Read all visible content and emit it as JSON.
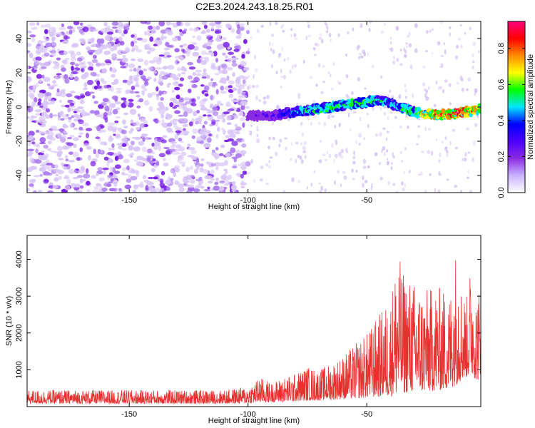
{
  "title": "C2E3.2024.243.18.25.R01",
  "chart_data": [
    {
      "type": "heatmap",
      "xlabel": "Height of straight line (km)",
      "ylabel": "Frequency (Hz)",
      "xlim": [
        -193,
        -2
      ],
      "ylim": [
        -50,
        50
      ],
      "xticks": [
        -150,
        -100,
        -50
      ],
      "yticks": [
        -40,
        -20,
        0,
        20,
        40
      ],
      "colorbar": {
        "label": "Normalized spectral amplitude",
        "range": [
          0.0,
          0.95
        ],
        "ticks": [
          0.0,
          0.2,
          0.4,
          0.6,
          0.8
        ],
        "tick_labels": [
          "0.0",
          "0.2",
          "0.4",
          "0.6",
          "0.8"
        ],
        "colormap": [
          "#ffffff",
          "#c9b2ff",
          "#8a2be2",
          "#4b00ff",
          "#0000ff",
          "#00e5ff",
          "#00ff00",
          "#ffff00",
          "#ff8c00",
          "#ff0000",
          "#ff0080"
        ]
      },
      "signal_track": {
        "x": [
          -100,
          -95,
          -90,
          -85,
          -80,
          -75,
          -70,
          -65,
          -60,
          -55,
          -50,
          -45,
          -40,
          -35,
          -30,
          -25,
          -20,
          -15,
          -10,
          -5,
          -2
        ],
        "freq": [
          -5,
          -5,
          -5,
          -4,
          -3,
          -2,
          -1,
          0,
          1,
          2,
          3,
          4,
          2,
          -1,
          -3,
          -4,
          -5,
          -4,
          -3,
          -2,
          -1
        ],
        "amplitude": [
          0.2,
          0.25,
          0.3,
          0.35,
          0.45,
          0.5,
          0.55,
          0.55,
          0.5,
          0.55,
          0.6,
          0.5,
          0.45,
          0.5,
          0.55,
          0.7,
          0.85,
          0.8,
          0.85,
          0.8,
          0.7
        ]
      },
      "noise_region": {
        "x_from": -193,
        "x_to": -100,
        "density": "high",
        "amplitude": [
          0.05,
          0.2
        ]
      }
    },
    {
      "type": "line",
      "xlabel": "Height of straight line (km)",
      "ylabel": "SNR (10 * v/v)",
      "xlim": [
        -193,
        -2
      ],
      "ylim": [
        0,
        4650
      ],
      "xticks": [
        -150,
        -100,
        -50
      ],
      "yticks": [
        1000,
        2000,
        3000,
        4000
      ],
      "color": "#e8302f",
      "envelope": {
        "x": [
          -193,
          -150,
          -110,
          -100,
          -95,
          -90,
          -85,
          -80,
          -75,
          -70,
          -65,
          -60,
          -55,
          -50,
          -45,
          -40,
          -37,
          -35,
          -30,
          -25,
          -20,
          -15,
          -12,
          -10,
          -8,
          -6,
          -4,
          -2
        ],
        "base": [
          200,
          200,
          200,
          220,
          280,
          300,
          320,
          350,
          400,
          420,
          450,
          500,
          550,
          600,
          650,
          700,
          800,
          900,
          1000,
          1000,
          1100,
          1200,
          1500,
          1800,
          2000,
          2200,
          1800,
          1800
        ],
        "peak": [
          450,
          450,
          450,
          550,
          800,
          650,
          800,
          900,
          1100,
          1000,
          1200,
          1400,
          1700,
          2000,
          2500,
          3000,
          4300,
          3700,
          3400,
          3200,
          3300,
          3100,
          4650,
          3200,
          3000,
          4000,
          3100,
          3400
        ]
      }
    }
  ]
}
